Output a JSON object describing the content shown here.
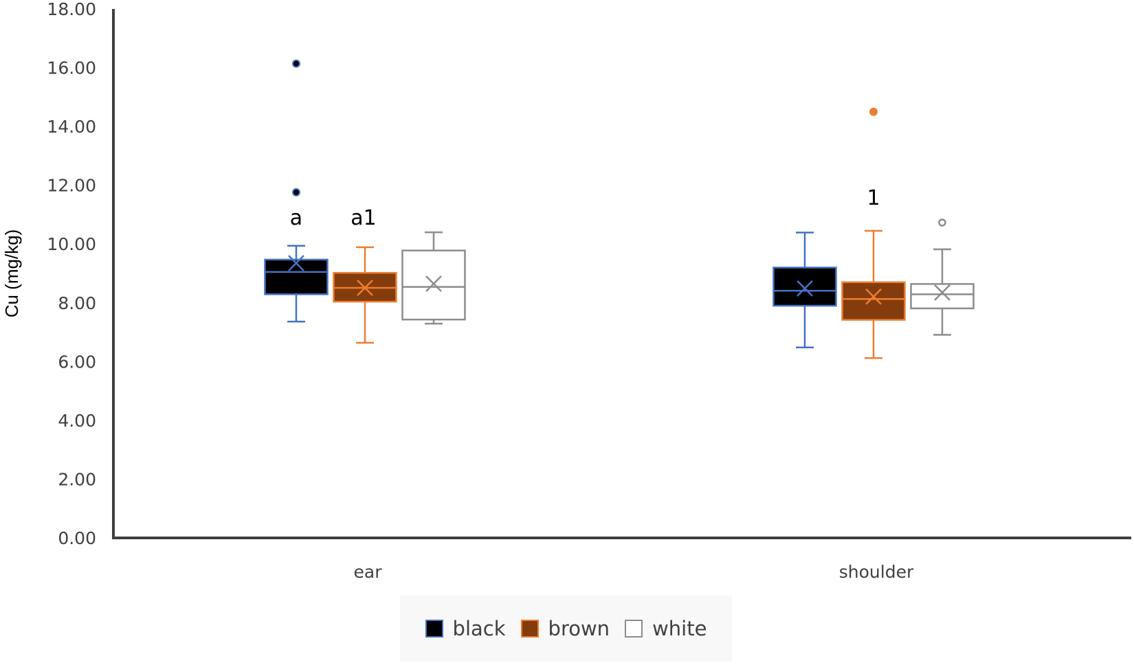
{
  "chart_data": {
    "type": "boxplot",
    "title": "",
    "xlabel": "",
    "ylabel": "Cu (mg/kg)",
    "ylim": [
      0,
      18
    ],
    "yticks": [
      "0.00",
      "2.00",
      "4.00",
      "6.00",
      "8.00",
      "10.00",
      "12.00",
      "14.00",
      "16.00",
      "18.00"
    ],
    "grid": false,
    "legend_position": "bottom",
    "categories": [
      "ear",
      "shoulder"
    ],
    "series": [
      {
        "name": "black",
        "fill": "#000000",
        "stroke": "#4472c4",
        "boxes": [
          {
            "category": "ear",
            "whisker_low": 7.36,
            "q1": 8.29,
            "median": 9.05,
            "q3": 9.47,
            "whisker_high": 9.94,
            "mean": 9.35,
            "outliers": [
              11.76,
              16.14
            ]
          },
          {
            "category": "shoulder",
            "whisker_low": 6.48,
            "q1": 7.9,
            "median": 8.41,
            "q3": 9.2,
            "whisker_high": 10.39,
            "mean": 8.49,
            "outliers": []
          }
        ]
      },
      {
        "name": "brown",
        "fill": "#843c0c",
        "stroke": "#ed7d31",
        "boxes": [
          {
            "category": "ear",
            "whisker_low": 6.64,
            "q1": 8.04,
            "median": 8.51,
            "q3": 9.02,
            "whisker_high": 9.89,
            "mean": 8.51,
            "outliers": []
          },
          {
            "category": "shoulder",
            "whisker_low": 6.12,
            "q1": 7.42,
            "median": 8.13,
            "q3": 8.7,
            "whisker_high": 10.45,
            "mean": 8.21,
            "outliers": [
              14.5
            ]
          }
        ]
      },
      {
        "name": "white",
        "fill": "#ffffff",
        "stroke": "#8c8c8c",
        "boxes": [
          {
            "category": "ear",
            "whisker_low": 7.29,
            "q1": 7.43,
            "median": 8.54,
            "q3": 9.78,
            "whisker_high": 10.4,
            "mean": 8.65,
            "outliers": []
          },
          {
            "category": "shoulder",
            "whisker_low": 6.91,
            "q1": 7.81,
            "median": 8.29,
            "q3": 8.64,
            "whisker_high": 9.82,
            "mean": 8.35,
            "outliers": [
              10.73
            ]
          }
        ]
      }
    ],
    "annotations": [
      {
        "text": "a",
        "category": "ear",
        "series": "black",
        "y": 10.7
      },
      {
        "text": "a1",
        "category": "ear",
        "series": "brown",
        "y": 10.7
      },
      {
        "text": "1",
        "category": "shoulder",
        "series": "brown",
        "y": 11.3
      }
    ]
  },
  "legend": {
    "items": [
      {
        "label": "black",
        "fill": "#000000",
        "stroke": "#4472c4"
      },
      {
        "label": "brown",
        "fill": "#843c0c",
        "stroke": "#ed7d31"
      },
      {
        "label": "white",
        "fill": "#ffffff",
        "stroke": "#8c8c8c"
      }
    ]
  }
}
